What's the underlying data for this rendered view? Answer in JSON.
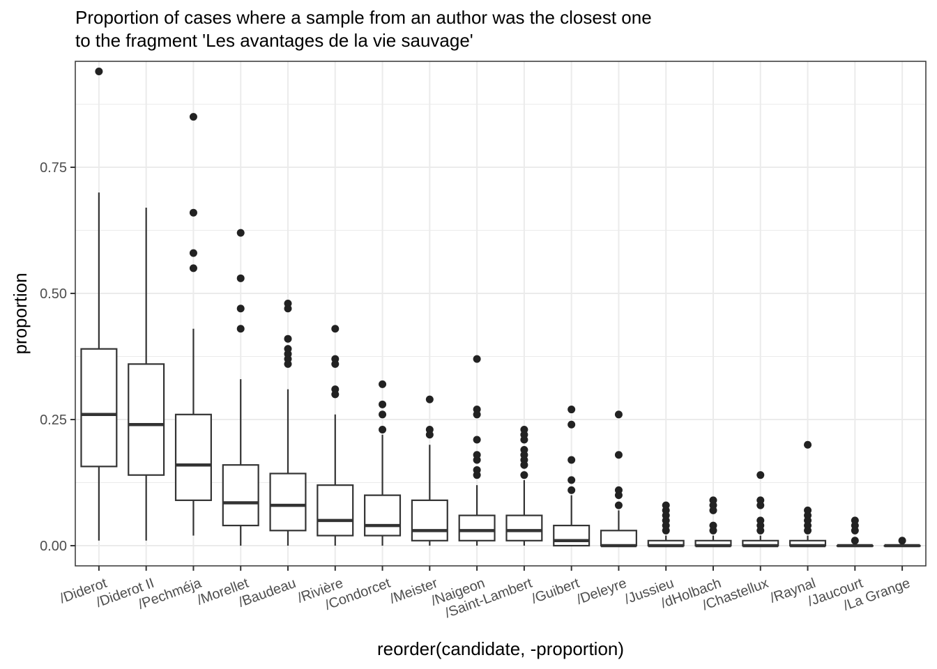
{
  "title_lines": [
    "Proportion of cases where a sample from an author was the closest one",
    "to the fragment 'Les avantages de la vie sauvage'"
  ],
  "chart_data": {
    "type": "box",
    "xlabel": "reorder(candidate, -proportion)",
    "ylabel": "proportion",
    "ylim": [
      -0.04,
      0.96
    ],
    "y_ticks": [
      0,
      0.25,
      0.5,
      0.75
    ],
    "y_tick_labels": [
      "0.00",
      "0.25",
      "0.50",
      "0.75"
    ],
    "grid": true,
    "x_tick_rotation": "slanted",
    "categories": [
      "/Diderot",
      "/Diderot II",
      "/Pechméja",
      "/Morellet",
      "/Baudeau",
      "/Rivière",
      "/Condorcet",
      "/Meister",
      "/Naigeon",
      "/Saint-Lambert",
      "/Guibert",
      "/Deleyre",
      "/Jussieu",
      "/dHolbach",
      "/Chastellux",
      "/Raynal",
      "/Jaucourt",
      "/La Grange"
    ],
    "boxes": [
      {
        "whisker_low": 0.01,
        "q1": 0.157,
        "median": 0.26,
        "q3": 0.39,
        "whisker_high": 0.7,
        "outliers": [
          0.94
        ]
      },
      {
        "whisker_low": 0.01,
        "q1": 0.14,
        "median": 0.24,
        "q3": 0.36,
        "whisker_high": 0.67,
        "outliers": []
      },
      {
        "whisker_low": 0.02,
        "q1": 0.09,
        "median": 0.16,
        "q3": 0.26,
        "whisker_high": 0.43,
        "outliers": [
          0.55,
          0.58,
          0.66,
          0.85
        ]
      },
      {
        "whisker_low": 0.0,
        "q1": 0.04,
        "median": 0.085,
        "q3": 0.16,
        "whisker_high": 0.33,
        "outliers": [
          0.43,
          0.47,
          0.53,
          0.62
        ]
      },
      {
        "whisker_low": 0.0,
        "q1": 0.03,
        "median": 0.08,
        "q3": 0.143,
        "whisker_high": 0.31,
        "outliers": [
          0.36,
          0.37,
          0.38,
          0.39,
          0.41,
          0.47,
          0.48
        ]
      },
      {
        "whisker_low": 0.0,
        "q1": 0.02,
        "median": 0.05,
        "q3": 0.12,
        "whisker_high": 0.26,
        "outliers": [
          0.3,
          0.31,
          0.36,
          0.37,
          0.43
        ]
      },
      {
        "whisker_low": 0.0,
        "q1": 0.02,
        "median": 0.04,
        "q3": 0.1,
        "whisker_high": 0.22,
        "outliers": [
          0.23,
          0.26,
          0.28,
          0.32
        ]
      },
      {
        "whisker_low": 0.0,
        "q1": 0.01,
        "median": 0.03,
        "q3": 0.09,
        "whisker_high": 0.2,
        "outliers": [
          0.22,
          0.23,
          0.29
        ]
      },
      {
        "whisker_low": 0.0,
        "q1": 0.01,
        "median": 0.03,
        "q3": 0.06,
        "whisker_high": 0.12,
        "outliers": [
          0.14,
          0.15,
          0.17,
          0.18,
          0.21,
          0.26,
          0.27,
          0.37
        ]
      },
      {
        "whisker_low": 0.0,
        "q1": 0.01,
        "median": 0.03,
        "q3": 0.06,
        "whisker_high": 0.13,
        "outliers": [
          0.14,
          0.16,
          0.17,
          0.18,
          0.19,
          0.21,
          0.22,
          0.23
        ]
      },
      {
        "whisker_low": 0.0,
        "q1": 0.0,
        "median": 0.01,
        "q3": 0.04,
        "whisker_high": 0.1,
        "outliers": [
          0.11,
          0.13,
          0.17,
          0.24,
          0.27
        ]
      },
      {
        "whisker_low": 0.0,
        "q1": 0.0,
        "median": 0.0,
        "q3": 0.03,
        "whisker_high": 0.07,
        "outliers": [
          0.08,
          0.1,
          0.11,
          0.18,
          0.26
        ]
      },
      {
        "whisker_low": 0.0,
        "q1": 0.0,
        "median": 0.0,
        "q3": 0.01,
        "whisker_high": 0.02,
        "outliers": [
          0.03,
          0.04,
          0.05,
          0.06,
          0.07,
          0.08
        ]
      },
      {
        "whisker_low": 0.0,
        "q1": 0.0,
        "median": 0.0,
        "q3": 0.01,
        "whisker_high": 0.02,
        "outliers": [
          0.03,
          0.04,
          0.07,
          0.08,
          0.09
        ]
      },
      {
        "whisker_low": 0.0,
        "q1": 0.0,
        "median": 0.0,
        "q3": 0.01,
        "whisker_high": 0.02,
        "outliers": [
          0.03,
          0.04,
          0.05,
          0.08,
          0.09,
          0.14
        ]
      },
      {
        "whisker_low": 0.0,
        "q1": 0.0,
        "median": 0.0,
        "q3": 0.01,
        "whisker_high": 0.02,
        "outliers": [
          0.03,
          0.04,
          0.05,
          0.06,
          0.07,
          0.2
        ]
      },
      {
        "whisker_low": 0.0,
        "q1": 0.0,
        "median": 0.0,
        "q3": 0.0,
        "whisker_high": 0.0,
        "outliers": [
          0.01,
          0.03,
          0.04,
          0.05
        ]
      },
      {
        "whisker_low": 0.0,
        "q1": 0.0,
        "median": 0.0,
        "q3": 0.0,
        "whisker_high": 0.0,
        "outliers": [
          0.01
        ]
      }
    ],
    "colors": {
      "box_line": "#333333",
      "outlier": "#222222",
      "grid": "#ebebeb",
      "panel_border": "#333333"
    }
  }
}
